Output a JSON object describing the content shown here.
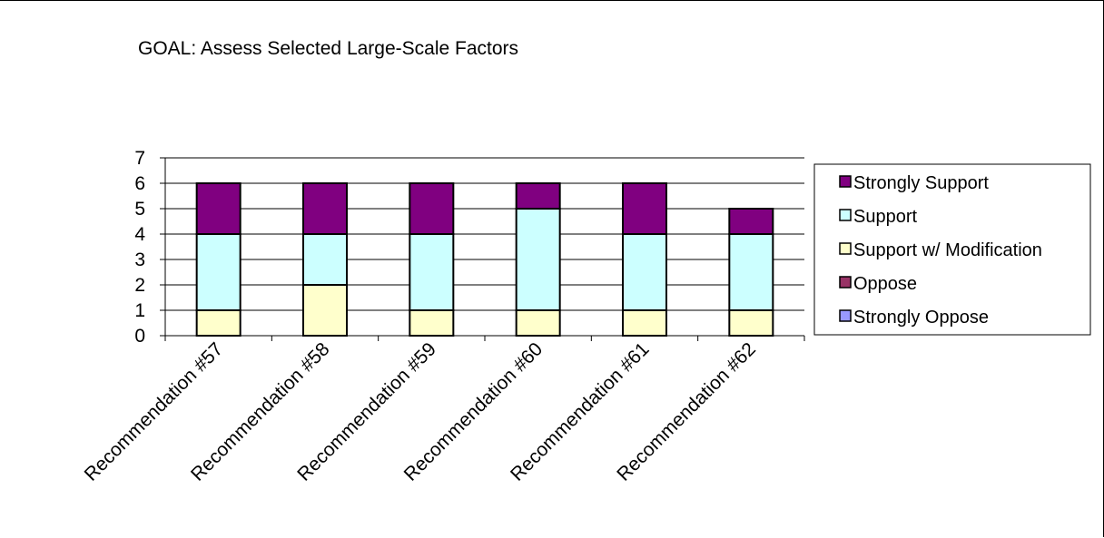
{
  "chart_data": {
    "type": "bar",
    "stacked": true,
    "title": "GOAL: Assess Selected Large-Scale Factors",
    "xlabel": "",
    "ylabel": "",
    "categories": [
      "Recommendation #57",
      "Recommendation #58",
      "Recommendation #59",
      "Recommendation #60",
      "Recommendation #61",
      "Recommendation #62"
    ],
    "y_ticks": [
      "0",
      "1",
      "2",
      "3",
      "4",
      "5",
      "6",
      "7"
    ],
    "ylim": [
      0,
      7
    ],
    "grid": true,
    "legend_position": "right",
    "series": [
      {
        "name": "Strongly Oppose",
        "color": "#9999ff",
        "values": [
          0,
          0,
          0,
          0,
          0,
          0
        ]
      },
      {
        "name": "Oppose",
        "color": "#993366",
        "values": [
          0,
          0,
          0,
          0,
          0,
          0
        ]
      },
      {
        "name": "Support w/ Modification",
        "color": "#ffffcc",
        "values": [
          1,
          2,
          1,
          1,
          1,
          1
        ]
      },
      {
        "name": "Support",
        "color": "#ccffff",
        "values": [
          3,
          2,
          3,
          4,
          3,
          3
        ]
      },
      {
        "name": "Strongly Support",
        "color": "#800080",
        "values": [
          2,
          2,
          2,
          1,
          2,
          1
        ]
      }
    ],
    "legend_order": [
      "Strongly Support",
      "Support",
      "Support w/ Modification",
      "Oppose",
      "Strongly Oppose"
    ]
  }
}
